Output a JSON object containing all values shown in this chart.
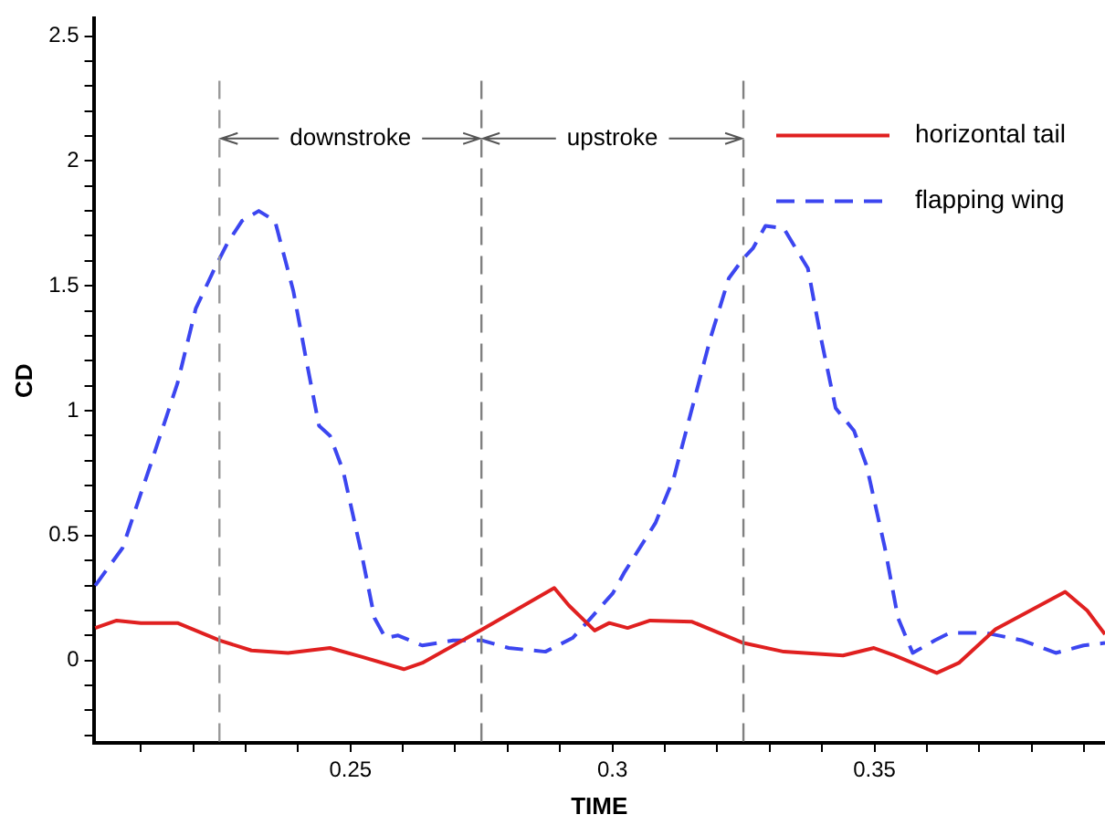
{
  "chart_data": {
    "type": "line",
    "xlabel": "TIME",
    "ylabel": "CD",
    "xlim": [
      0.201,
      0.394
    ],
    "ylim": [
      -0.33,
      2.57
    ],
    "xticks": [
      {
        "value": 0.21,
        "label": null
      },
      {
        "value": 0.22,
        "label": null
      },
      {
        "value": 0.23,
        "label": null
      },
      {
        "value": 0.24,
        "label": null
      },
      0.25,
      {
        "value": 0.26,
        "label": null
      },
      {
        "value": 0.27,
        "label": null
      },
      {
        "value": 0.28,
        "label": null
      },
      {
        "value": 0.29,
        "label": null
      },
      0.3,
      {
        "value": 0.31,
        "label": null
      },
      {
        "value": 0.32,
        "label": null
      },
      {
        "value": 0.33,
        "label": null
      },
      {
        "value": 0.34,
        "label": null
      },
      0.35,
      {
        "value": 0.36,
        "label": null
      },
      {
        "value": 0.37,
        "label": null
      },
      {
        "value": 0.38,
        "label": null
      },
      {
        "value": 0.39,
        "label": null
      }
    ],
    "yticks": [
      {
        "value": -0.3,
        "label": null
      },
      {
        "value": -0.2,
        "label": null
      },
      {
        "value": -0.1,
        "label": null
      },
      0,
      {
        "value": 0.1,
        "label": null
      },
      {
        "value": 0.2,
        "label": null
      },
      {
        "value": 0.3,
        "label": null
      },
      {
        "value": 0.4,
        "label": null
      },
      0.5,
      {
        "value": 0.6,
        "label": null
      },
      {
        "value": 0.7,
        "label": null
      },
      {
        "value": 0.8,
        "label": null
      },
      {
        "value": 0.9,
        "label": null
      },
      1,
      {
        "value": 1.1,
        "label": null
      },
      {
        "value": 1.2,
        "label": null
      },
      {
        "value": 1.3,
        "label": null
      },
      {
        "value": 1.4,
        "label": null
      },
      1.5,
      {
        "value": 1.6,
        "label": null
      },
      {
        "value": 1.7,
        "label": null
      },
      {
        "value": 1.8,
        "label": null
      },
      {
        "value": 1.9,
        "label": null
      },
      2,
      {
        "value": 2.1,
        "label": null
      },
      {
        "value": 2.2,
        "label": null
      },
      {
        "value": 2.3,
        "label": null
      },
      {
        "value": 2.4,
        "label": null
      },
      2.5
    ],
    "grid": false,
    "legend": "top right",
    "marker": "none",
    "series": [
      {
        "name": "horizontal tail",
        "color": "#e02020",
        "line_style": "solid",
        "x": [
          0.2013,
          0.2054,
          0.21,
          0.217,
          0.2251,
          0.2311,
          0.2381,
          0.2461,
          0.2521,
          0.2602,
          0.2637,
          0.2752,
          0.2889,
          0.2917,
          0.2966,
          0.2994,
          0.3029,
          0.3072,
          0.3152,
          0.325,
          0.3327,
          0.344,
          0.3499,
          0.3538,
          0.3619,
          0.3661,
          0.3731,
          0.3864,
          0.3906,
          0.394
        ],
        "values": [
          0.13,
          0.16,
          0.15,
          0.15,
          0.08,
          0.04,
          0.03,
          0.05,
          0.015,
          -0.035,
          -0.01,
          0.125,
          0.29,
          0.22,
          0.12,
          0.15,
          0.13,
          0.16,
          0.155,
          0.07,
          0.035,
          0.02,
          0.05,
          0.02,
          -0.05,
          -0.01,
          0.125,
          0.275,
          0.2,
          0.105
        ]
      },
      {
        "name": "flapping wing",
        "color": "#3c46f0",
        "line_style": "dashed",
        "x": [
          0.2013,
          0.2065,
          0.2118,
          0.217,
          0.2205,
          0.2241,
          0.2265,
          0.2293,
          0.2325,
          0.2356,
          0.2391,
          0.2416,
          0.244,
          0.2461,
          0.2486,
          0.2521,
          0.2546,
          0.2567,
          0.2591,
          0.2637,
          0.2696,
          0.2752,
          0.2802,
          0.2872,
          0.2924,
          0.2959,
          0.3001,
          0.3022,
          0.3082,
          0.3117,
          0.3152,
          0.3187,
          0.3222,
          0.325,
          0.3268,
          0.3292,
          0.3327,
          0.3373,
          0.3398,
          0.3426,
          0.3461,
          0.3485,
          0.352,
          0.3545,
          0.3573,
          0.3615,
          0.3643,
          0.3713,
          0.3783,
          0.3846,
          0.3899,
          0.394
        ],
        "values": [
          0.3,
          0.45,
          0.78,
          1.11,
          1.41,
          1.57,
          1.67,
          1.76,
          1.8,
          1.76,
          1.48,
          1.2,
          0.94,
          0.9,
          0.76,
          0.43,
          0.17,
          0.09,
          0.1,
          0.06,
          0.08,
          0.08,
          0.05,
          0.035,
          0.09,
          0.17,
          0.27,
          0.35,
          0.55,
          0.73,
          1.01,
          1.29,
          1.53,
          1.61,
          1.65,
          1.74,
          1.73,
          1.57,
          1.29,
          1.01,
          0.92,
          0.78,
          0.45,
          0.17,
          0.03,
          0.08,
          0.11,
          0.11,
          0.08,
          0.03,
          0.06,
          0.07
        ]
      }
    ],
    "ref_lines": [
      {
        "axis": "x",
        "value": 0.225,
        "color": "#999999",
        "line_style": "dashed"
      },
      {
        "axis": "x",
        "value": 0.275,
        "color": "#808080",
        "line_style": "dashed"
      },
      {
        "axis": "x",
        "value": 0.325,
        "color": "#808080",
        "line_style": "dashed"
      }
    ],
    "annotations": [
      {
        "text": "downstroke",
        "x": 0.225,
        "y": 2.09
      },
      {
        "text": "upstroke",
        "x": 0.275,
        "y": 2.09
      }
    ]
  }
}
